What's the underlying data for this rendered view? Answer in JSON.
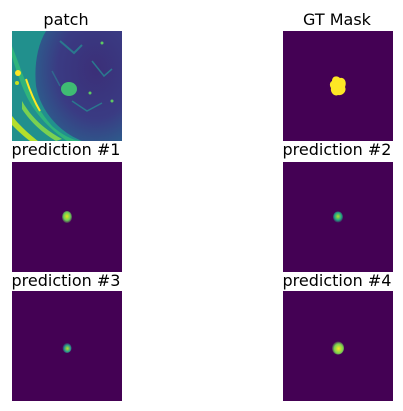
{
  "panels": [
    {
      "id": "patch",
      "title": "patch"
    },
    {
      "id": "gt",
      "title": "GT Mask"
    },
    {
      "id": "p1",
      "title": "prediction #1"
    },
    {
      "id": "p2",
      "title": "prediction #2"
    },
    {
      "id": "p3",
      "title": "prediction #3"
    },
    {
      "id": "p4",
      "title": "prediction #4"
    }
  ],
  "colors": {
    "background_dark": "#440154",
    "mask_yellow": "#fde725",
    "mid_green": "#22a884",
    "teal": "#2a788e",
    "light_green": "#7ad151"
  }
}
